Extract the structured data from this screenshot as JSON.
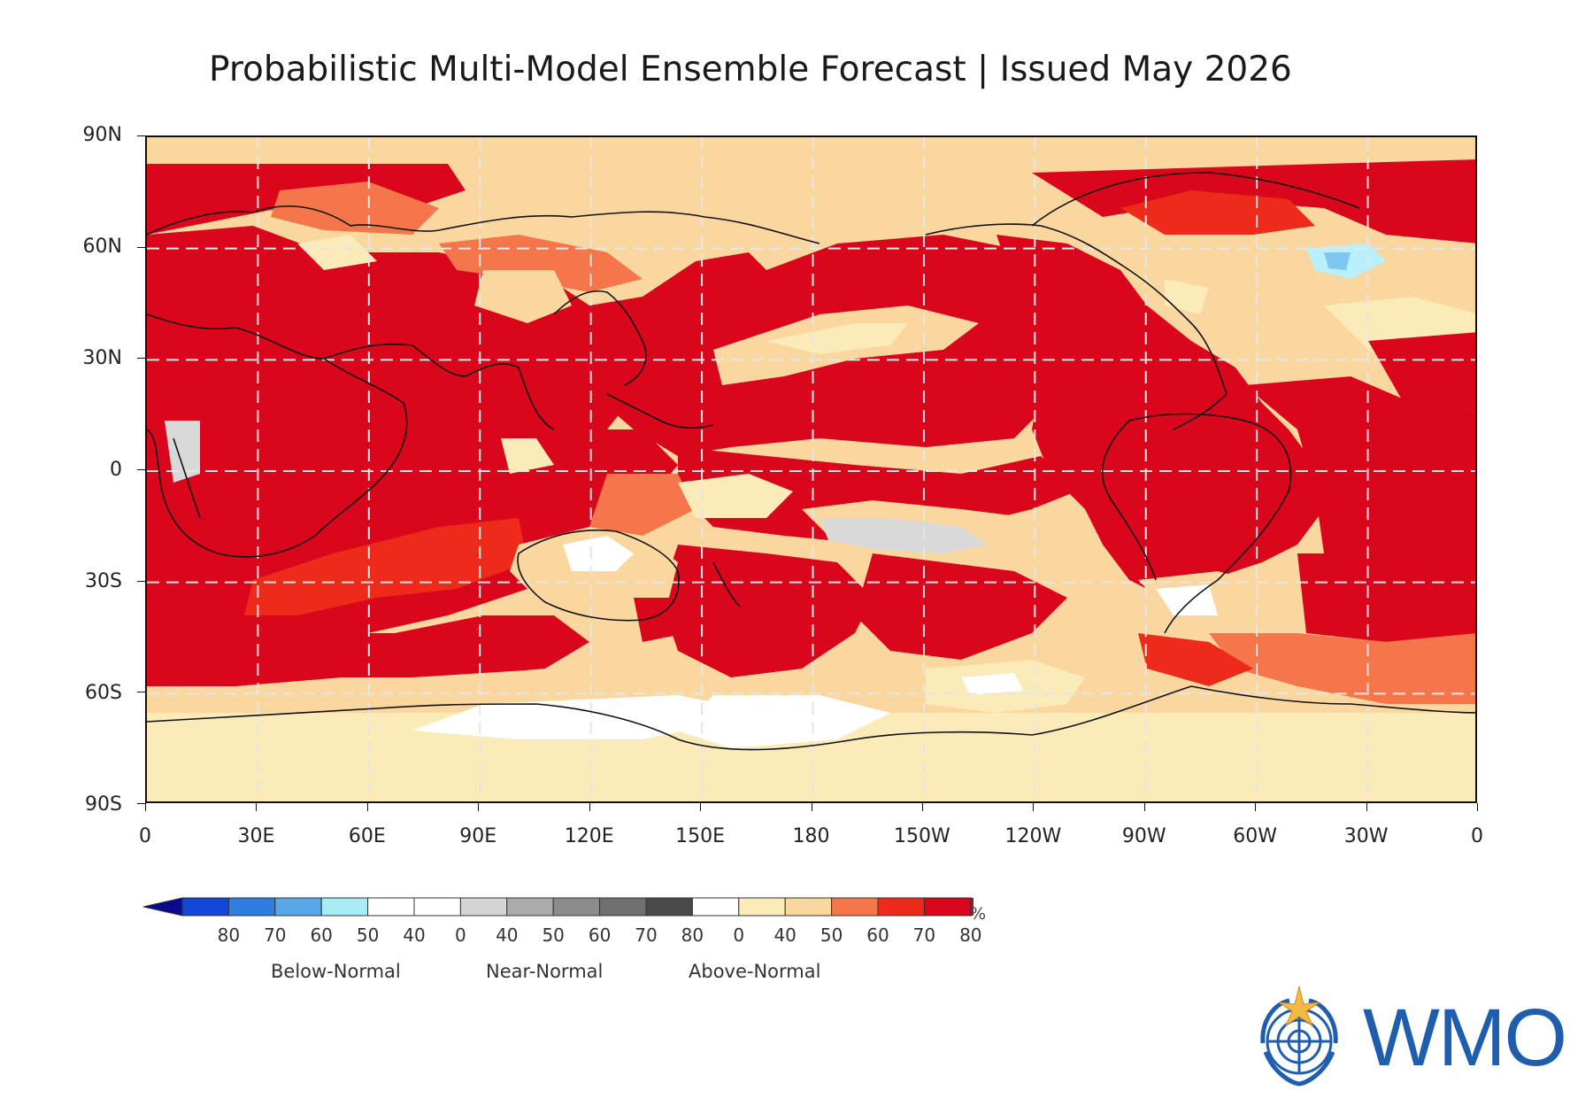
{
  "title": "Probabilistic Multi-Model Ensemble Forecast | Issued May 2026",
  "map": {
    "projection": "equirectangular",
    "lon_range": [
      0,
      360
    ],
    "lat_range": [
      -90,
      90
    ],
    "grid": "dashed",
    "lat_labels": [
      "90N",
      "60N",
      "30N",
      "0",
      "30S",
      "60S",
      "90S"
    ],
    "lon_labels": [
      "0",
      "30E",
      "60E",
      "90E",
      "120E",
      "150E",
      "180",
      "150W",
      "120W",
      "90W",
      "60W",
      "30W",
      "0"
    ],
    "dominant_category": "Above-Normal",
    "colors": {
      "above_80": "#d9061c",
      "above_70": "#ee2a1a",
      "above_60": "#f5764a",
      "above_50": "#fbd7a0",
      "above_40": "#faebb9",
      "near_normal": "#d9d9d9",
      "below_40": "#b8f0fb",
      "below_50": "#7fc7f2",
      "white": "#ffffff",
      "coast": "#111111"
    }
  },
  "legend": {
    "unit": "%",
    "groups": [
      "Below-Normal",
      "Near-Normal",
      "Above-Normal"
    ],
    "values": [
      "80",
      "70",
      "60",
      "50",
      "40",
      "0",
      "40",
      "50",
      "60",
      "70",
      "80",
      "0",
      "40",
      "50",
      "60",
      "70",
      "80"
    ],
    "colors": [
      "#1146d6",
      "#2f7de0",
      "#58a8ea",
      "#a8ecf6",
      "#ffffff",
      "#ffffff",
      "#d4d4d4",
      "#ababab",
      "#8c8c8c",
      "#6f6f6f",
      "#4a4a4a",
      "#ffffff",
      "#faebb9",
      "#fbd7a0",
      "#f5764a",
      "#ee2a1a",
      "#d9061c"
    ],
    "end_low": "#0a0a8c",
    "end_high": "#c8061a"
  },
  "logo": {
    "text": "WMO",
    "icon": "un-emblem-icon",
    "color": "#1f5eae"
  }
}
